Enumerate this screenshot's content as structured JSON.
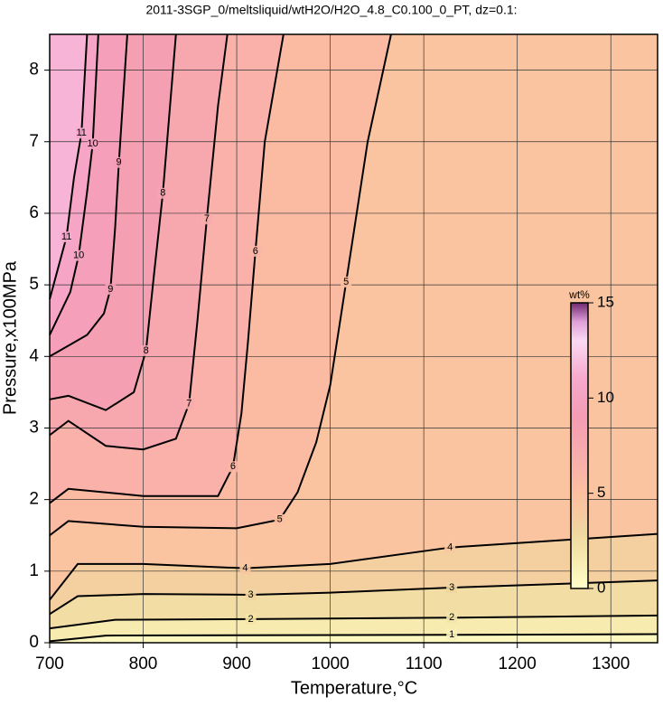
{
  "chart_data": {
    "type": "contour",
    "title": "2011-3SGP_0/meltsliquid/wtH2O/H2O_4.8_C0.100_0_PT, dz=0.1:",
    "x_label": "Temperature,°C",
    "y_label": "Pressure,x100MPa",
    "xlim": [
      700,
      1350
    ],
    "ylim": [
      0,
      8.5
    ],
    "xticks": [
      700,
      800,
      900,
      1000,
      1100,
      1200,
      1300
    ],
    "yticks": [
      0,
      1,
      2,
      3,
      4,
      5,
      6,
      7,
      8
    ],
    "grid": true,
    "colorbar": {
      "title": "wt%",
      "lim": [
        0,
        15
      ],
      "ticks": [
        0,
        5,
        10,
        15
      ]
    },
    "colormap": [
      {
        "value": 0,
        "color": "#ffffc8"
      },
      {
        "value": 2,
        "color": "#f4e4a8"
      },
      {
        "value": 3,
        "color": "#f0d6a0"
      },
      {
        "value": 4,
        "color": "#f8c8a0"
      },
      {
        "value": 5,
        "color": "#fcc0a0"
      },
      {
        "value": 7,
        "color": "#f8acac"
      },
      {
        "value": 9,
        "color": "#f49cb4"
      },
      {
        "value": 11,
        "color": "#f7a8cc"
      },
      {
        "value": 13,
        "color": "#fad8f2"
      },
      {
        "value": 14,
        "color": "#e0a0d8"
      },
      {
        "value": 15,
        "color": "#702870"
      }
    ],
    "contours": [
      {
        "level": 1,
        "T": [
          700,
          760,
          1130,
          1350
        ],
        "P": [
          0.02,
          0.1,
          0.11,
          0.12
        ]
      },
      {
        "level": 2,
        "T": [
          700,
          770,
          915,
          1130,
          1350
        ],
        "P": [
          0.2,
          0.32,
          0.33,
          0.35,
          0.38
        ]
      },
      {
        "level": 3,
        "T": [
          700,
          730,
          800,
          915,
          1000,
          1130,
          1350
        ],
        "P": [
          0.4,
          0.65,
          0.68,
          0.67,
          0.7,
          0.77,
          0.87
        ]
      },
      {
        "level": 4,
        "T": [
          700,
          715,
          730,
          800,
          909,
          1000,
          1128,
          1350
        ],
        "P": [
          0.6,
          0.85,
          1.1,
          1.1,
          1.04,
          1.1,
          1.33,
          1.52
        ]
      },
      {
        "level": 5,
        "T": [
          700,
          720,
          800,
          900,
          946,
          965,
          985,
          1000,
          1017,
          1040,
          1065
        ],
        "P": [
          1.5,
          1.7,
          1.62,
          1.6,
          1.72,
          2.1,
          2.8,
          3.6,
          5.04,
          7,
          8.5
        ]
      },
      {
        "level": 6,
        "T": [
          700,
          720,
          800,
          880,
          896,
          905,
          912,
          920,
          930,
          950
        ],
        "P": [
          1.95,
          2.15,
          2.05,
          2.05,
          2.46,
          3.2,
          4.2,
          5.47,
          7,
          8.5
        ]
      },
      {
        "level": 7,
        "T": [
          700,
          720,
          760,
          800,
          835,
          849,
          858,
          868,
          880,
          890
        ],
        "P": [
          2.9,
          3.1,
          2.75,
          2.7,
          2.85,
          3.34,
          4.5,
          5.92,
          7.5,
          8.5
        ]
      },
      {
        "level": 8,
        "T": [
          700,
          720,
          760,
          790,
          803,
          812,
          821,
          835
        ],
        "P": [
          3.4,
          3.45,
          3.25,
          3.5,
          4.08,
          5.2,
          6.28,
          8.5
        ]
      },
      {
        "level": 9,
        "T": [
          700,
          740,
          758,
          765,
          770,
          774,
          783
        ],
        "P": [
          4.0,
          4.3,
          4.6,
          4.94,
          5.8,
          6.71,
          8.5
        ]
      },
      {
        "level": 10,
        "T": [
          700,
          722,
          731,
          740,
          746,
          752
        ],
        "P": [
          4.3,
          4.9,
          5.41,
          6.3,
          6.97,
          8.5
        ]
      },
      {
        "level": 11,
        "T": [
          700,
          718,
          726,
          734,
          740
        ],
        "P": [
          4.8,
          5.67,
          6.5,
          7.12,
          8.5
        ]
      }
    ]
  }
}
